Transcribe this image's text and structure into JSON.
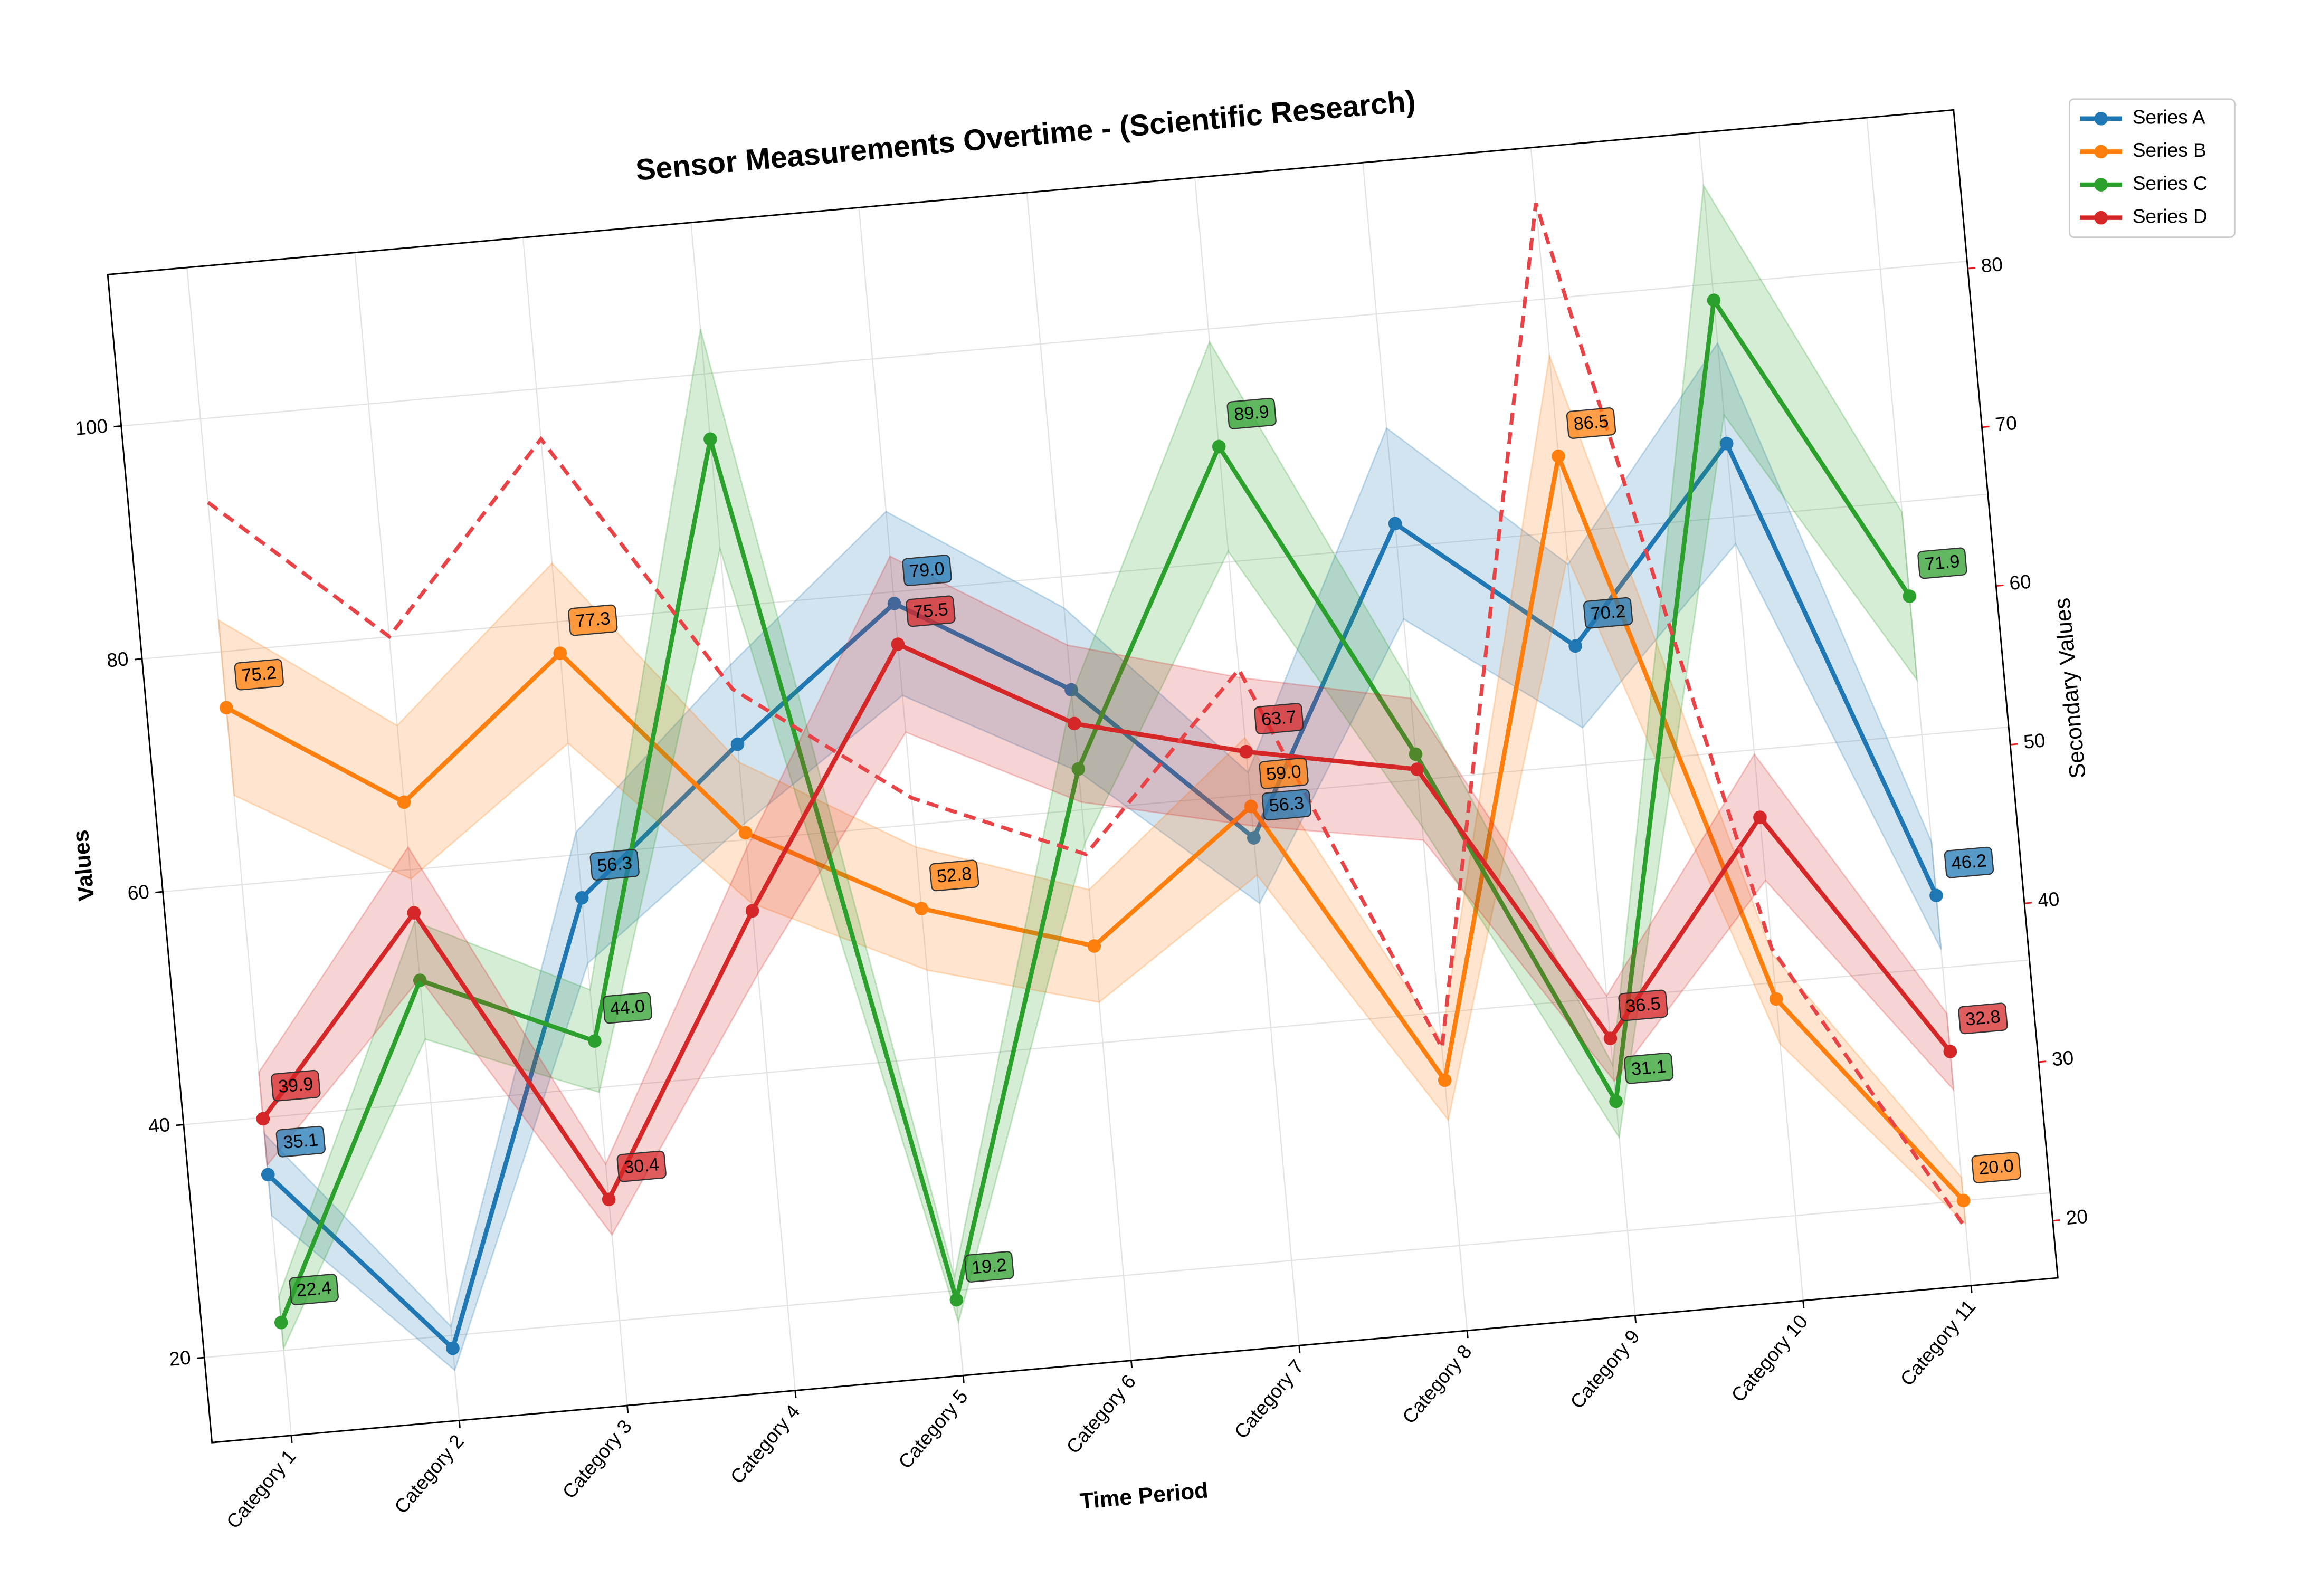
{
  "chart_data": {
    "type": "line",
    "title": "Sensor Measurements Overtime - (Scientific Research)",
    "x_label": "Time Period",
    "y_label": "Values",
    "y2_label": "Secondary Values",
    "categories": [
      "Category 1",
      "Category 2",
      "Category 3",
      "Category 4",
      "Category 5",
      "Category 6",
      "Category 7",
      "Category 8",
      "Category 9",
      "Category 10",
      "Category 11"
    ],
    "series": [
      {
        "name": "Series A",
        "color": "#1f77b4",
        "values": [
          35.1,
          18.9,
          56.3,
          68.2,
          79.0,
          70.3,
          56.3,
          82.0,
          70.2,
          86.3,
          46.2
        ],
        "value_labels": [
          "35.1",
          null,
          "56.3",
          null,
          "79.0",
          null,
          "56.3",
          null,
          "70.2",
          null,
          "46.2"
        ]
      },
      {
        "name": "Series B",
        "color": "#ff7f0e",
        "values": [
          75.2,
          65.8,
          77.3,
          60.6,
          52.8,
          48.3,
          59.0,
          34.2,
          86.5,
          38.6,
          20.0
        ],
        "value_labels": [
          "75.2",
          null,
          "77.3",
          null,
          "52.8",
          null,
          "59.0",
          null,
          "86.5",
          null,
          "20.0"
        ]
      },
      {
        "name": "Series C",
        "color": "#2ca02c",
        "values": [
          22.4,
          50.5,
          44.0,
          94.4,
          19.2,
          63.5,
          89.9,
          62.2,
          31.1,
          98.6,
          71.9
        ],
        "value_labels": [
          "22.4",
          null,
          "44.0",
          null,
          "19.2",
          null,
          "89.9",
          null,
          "31.1",
          null,
          "71.9"
        ]
      },
      {
        "name": "Series D",
        "color": "#d62728",
        "values": [
          39.9,
          56.3,
          30.4,
          53.9,
          75.5,
          67.4,
          63.7,
          60.9,
          36.5,
          54.2,
          32.8
        ],
        "value_labels": [
          "39.9",
          null,
          "30.4",
          null,
          "75.5",
          null,
          "63.7",
          null,
          "36.5",
          null,
          "32.8"
        ]
      },
      {
        "color": "#e84448",
        "axis": "y2",
        "dashed": true,
        "values": [
          75.2,
          65.8,
          77.3,
          60.6,
          52.8,
          48.3,
          59.0,
          34.2,
          86.5,
          38.6,
          20.0
        ]
      }
    ],
    "uncertainty": 0.1,
    "ylim": [
      12.7,
      113
    ],
    "yticks": [
      20,
      40,
      60,
      80,
      100
    ],
    "y2lim": [
      16.4,
      90
    ],
    "y2ticks": [
      20,
      30,
      40,
      50,
      60,
      70,
      80
    ],
    "y2_color": "#e41a1c",
    "grid": true,
    "legend": "outside-upper-right"
  }
}
